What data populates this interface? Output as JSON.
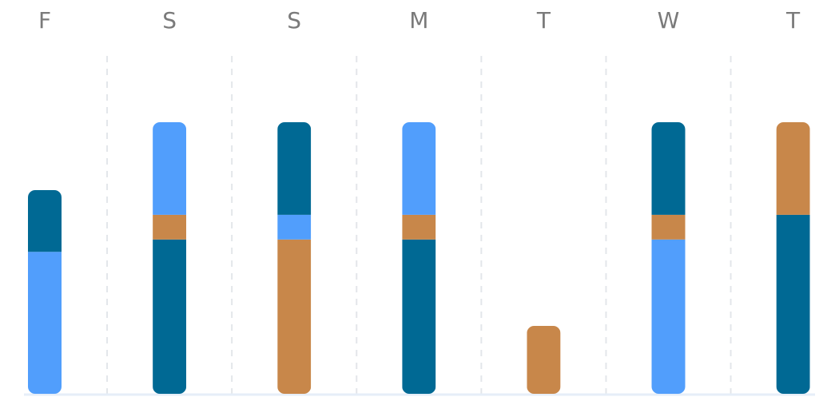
{
  "chart_data": {
    "type": "bar",
    "stacked": true,
    "categories": [
      "F",
      "S",
      "S",
      "M",
      "T",
      "W",
      "T"
    ],
    "ylim": [
      0,
      22
    ],
    "grid": true,
    "legend": "none",
    "bars": [
      {
        "segments": [
          {
            "color": "#519efc",
            "value": 11.5
          },
          {
            "color": "#006994",
            "value": 5
          }
        ]
      },
      {
        "segments": [
          {
            "color": "#006994",
            "value": 12.5
          },
          {
            "color": "#c8874a",
            "value": 2
          },
          {
            "color": "#519efc",
            "value": 7.5
          }
        ]
      },
      {
        "segments": [
          {
            "color": "#c8874a",
            "value": 12.5
          },
          {
            "color": "#519efc",
            "value": 2
          },
          {
            "color": "#006994",
            "value": 7.5
          }
        ]
      },
      {
        "segments": [
          {
            "color": "#006994",
            "value": 12.5
          },
          {
            "color": "#c8874a",
            "value": 2
          },
          {
            "color": "#519efc",
            "value": 7.5
          }
        ]
      },
      {
        "segments": [
          {
            "color": "#c8874a",
            "value": 5.5
          }
        ]
      },
      {
        "segments": [
          {
            "color": "#519efc",
            "value": 12.5
          },
          {
            "color": "#c8874a",
            "value": 2
          },
          {
            "color": "#006994",
            "value": 7.5
          }
        ]
      },
      {
        "segments": [
          {
            "color": "#006994",
            "value": 14.5
          },
          {
            "color": "#c8874a",
            "value": 7.5
          }
        ]
      }
    ]
  },
  "colors": {
    "dark_teal": "#006994",
    "light_blue": "#519efc",
    "orange": "#c8874a",
    "label": "#7a7a7a",
    "grid": "#e3e6ea",
    "baseline": "#e6eef8"
  }
}
